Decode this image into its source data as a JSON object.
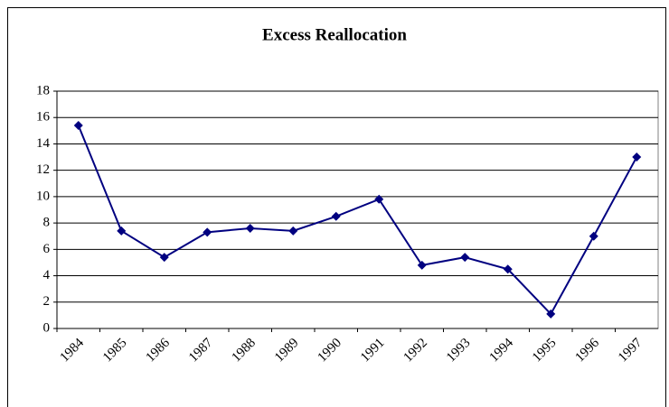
{
  "chart_data": {
    "type": "line",
    "title": "Excess Reallocation",
    "categories": [
      "1984",
      "1985",
      "1986",
      "1987",
      "1988",
      "1989",
      "1990",
      "1991",
      "1992",
      "1993",
      "1994",
      "1995",
      "1996",
      "1997"
    ],
    "values": [
      15.4,
      7.4,
      5.4,
      7.3,
      7.6,
      7.4,
      8.5,
      9.8,
      4.8,
      5.4,
      4.5,
      1.1,
      7.0,
      13.0
    ],
    "color": "#000080",
    "ylim": [
      0,
      18
    ],
    "yticks": [
      0,
      2,
      4,
      6,
      8,
      10,
      12,
      14,
      16,
      18
    ],
    "grid": true
  }
}
